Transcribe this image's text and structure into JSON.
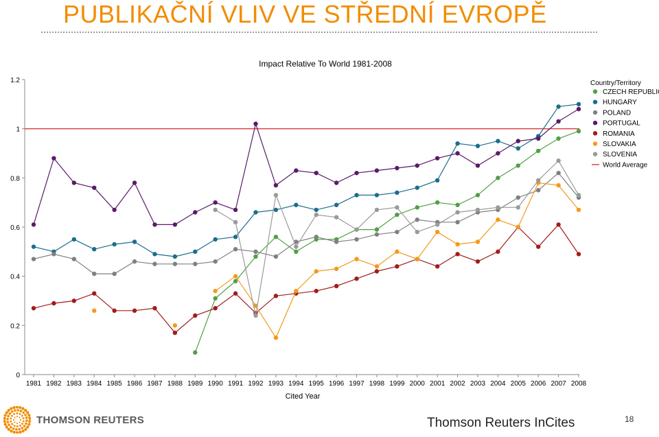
{
  "slide": {
    "title": "PUBLIKAČNÍ VLIV VE STŘEDNÍ EVROPĚ",
    "brand": "THOMSON REUTERS",
    "source": "Thomson Reuters InCites",
    "page_number": "18"
  },
  "chart_data": {
    "type": "line",
    "title": "Impact Relative To World 1981-2008",
    "xlabel": "Cited Year",
    "ylabel": "",
    "ylim": [
      0,
      1.2
    ],
    "yticks": [
      "0",
      "0.2",
      "0.4",
      "0.6",
      "0.8",
      "1",
      "1.2"
    ],
    "categories": [
      "1981",
      "1982",
      "1983",
      "1984",
      "1985",
      "1986",
      "1987",
      "1988",
      "1989",
      "1990",
      "1991",
      "1992",
      "1993",
      "1994",
      "1995",
      "1996",
      "1997",
      "1998",
      "1999",
      "2000",
      "2001",
      "2002",
      "2003",
      "2004",
      "2005",
      "2006",
      "2007",
      "2008"
    ],
    "legend_title": "Country/Territory",
    "legend_position": "right",
    "reference_line": {
      "name": "World Average",
      "value": 1,
      "color": "#d9383a"
    },
    "series": [
      {
        "name": "CZECH REPUBLIC",
        "color": "#4fa044",
        "values": [
          null,
          null,
          null,
          null,
          null,
          null,
          null,
          null,
          0.09,
          0.31,
          0.38,
          0.48,
          0.56,
          0.5,
          0.55,
          0.55,
          0.59,
          0.59,
          0.65,
          0.68,
          0.7,
          0.69,
          0.73,
          0.8,
          0.85,
          0.91,
          0.96,
          0.99
        ]
      },
      {
        "name": "HUNGARY",
        "color": "#1b6d8c",
        "values": [
          0.52,
          0.5,
          0.55,
          0.51,
          0.53,
          0.54,
          0.49,
          0.48,
          0.5,
          0.55,
          0.56,
          0.66,
          0.67,
          0.69,
          0.67,
          0.69,
          0.73,
          0.73,
          0.74,
          0.76,
          0.79,
          0.94,
          0.93,
          0.95,
          0.92,
          0.97,
          1.09,
          1.1
        ]
      },
      {
        "name": "POLAND",
        "color": "#808080",
        "values": [
          0.47,
          0.49,
          0.47,
          0.41,
          0.41,
          0.46,
          0.45,
          0.45,
          0.45,
          0.46,
          0.51,
          0.5,
          0.48,
          0.54,
          0.56,
          0.54,
          0.55,
          0.57,
          0.58,
          0.63,
          0.62,
          0.62,
          0.66,
          0.67,
          0.72,
          0.75,
          0.82,
          0.72
        ]
      },
      {
        "name": "PORTUGAL",
        "color": "#5b1a6b",
        "values": [
          0.61,
          0.88,
          0.78,
          0.76,
          0.67,
          0.78,
          0.61,
          0.61,
          0.66,
          0.7,
          0.67,
          1.02,
          0.77,
          0.83,
          0.82,
          0.78,
          0.82,
          0.83,
          0.84,
          0.85,
          0.88,
          0.9,
          0.85,
          0.9,
          0.95,
          0.96,
          1.03,
          1.08
        ]
      },
      {
        "name": "ROMANIA",
        "color": "#a11d1d",
        "values": [
          0.27,
          0.29,
          0.3,
          0.33,
          0.26,
          0.26,
          0.27,
          0.17,
          0.24,
          0.27,
          0.33,
          0.25,
          0.32,
          0.33,
          0.34,
          0.36,
          0.39,
          0.42,
          0.44,
          0.47,
          0.44,
          0.49,
          0.46,
          0.5,
          0.6,
          0.52,
          0.61,
          0.49
        ]
      },
      {
        "name": "SLOVAKIA",
        "color": "#f39a1d",
        "values": [
          null,
          null,
          null,
          0.26,
          null,
          null,
          null,
          0.2,
          null,
          0.34,
          0.4,
          0.28,
          0.15,
          0.34,
          0.42,
          0.43,
          0.47,
          0.44,
          0.5,
          0.47,
          0.58,
          0.53,
          0.54,
          0.63,
          0.6,
          0.78,
          0.77,
          0.67
        ]
      },
      {
        "name": "SLOVENIA",
        "color": "#9a9a9a",
        "values": [
          null,
          null,
          null,
          null,
          null,
          null,
          null,
          null,
          null,
          0.67,
          0.62,
          0.24,
          0.73,
          0.52,
          0.65,
          0.64,
          0.59,
          0.67,
          0.68,
          0.58,
          0.61,
          0.66,
          0.67,
          0.68,
          0.68,
          0.79,
          0.87,
          0.73
        ]
      }
    ]
  }
}
